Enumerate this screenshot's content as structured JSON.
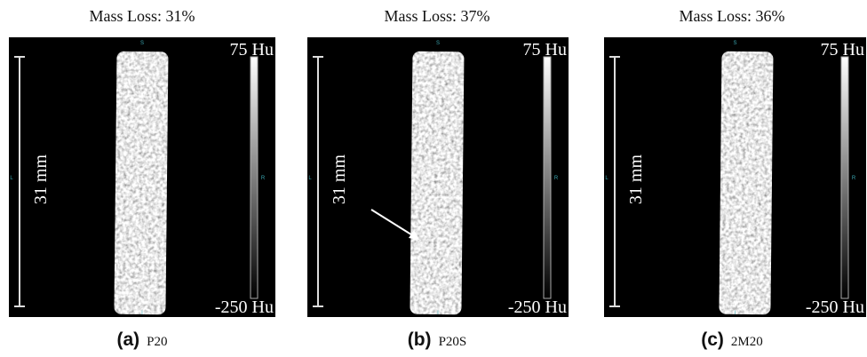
{
  "panels": [
    {
      "title": "Mass Loss: 31%",
      "scale_label": "31 mm",
      "colorbar_max": "75 Hu",
      "colorbar_min": "-250 Hu",
      "orientation": {
        "top": "S",
        "bottom": "I",
        "left": "L",
        "right": "R"
      },
      "letter": "(a)",
      "caption": "P20"
    },
    {
      "title": "Mass Loss: 37%",
      "scale_label": "31 mm",
      "colorbar_max": "75 Hu",
      "colorbar_min": "-250 Hu",
      "orientation": {
        "top": "S",
        "bottom": "I",
        "left": "L",
        "right": "R"
      },
      "letter": "(b)",
      "caption": "P20S"
    },
    {
      "title": "Mass Loss: 36%",
      "scale_label": "31 mm",
      "colorbar_max": "75 Hu",
      "colorbar_min": "-250 Hu",
      "orientation": {
        "top": "S",
        "bottom": "I",
        "left": "L",
        "right": "R"
      },
      "letter": "(c)",
      "caption": "2M20"
    }
  ]
}
